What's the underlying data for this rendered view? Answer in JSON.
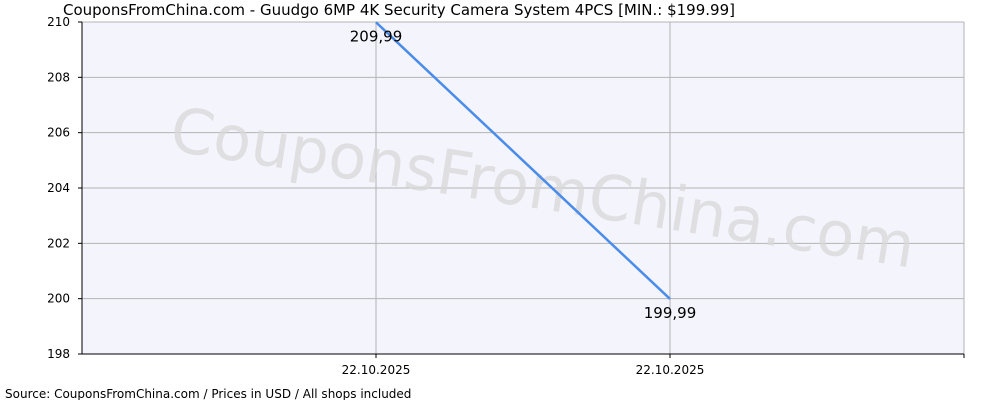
{
  "watermark": "CouponsFromChina.com",
  "source": "Source: CouponsFromChina.com / Prices in USD / All shops included",
  "colors": {
    "plot_bg": "#f4f4fc",
    "grid": "#b4b4b4",
    "line": "#4a8cea",
    "axis": "#000000"
  },
  "chart_data": {
    "type": "line",
    "title": "CouponsFromChina.com - Guudgo 6MP 4K Security Camera System 4PCS [MIN.: $199.99]",
    "xlabel": "",
    "ylabel": "",
    "ylim": [
      198,
      210
    ],
    "yticks": [
      198,
      200,
      202,
      204,
      206,
      208,
      210
    ],
    "ytick_labels": [
      "198",
      "200",
      "202",
      "204",
      "206",
      "208",
      "210"
    ],
    "x": [
      "22.10.2025",
      "22.10.2025"
    ],
    "series": [
      {
        "values": [
          209.99,
          199.99
        ],
        "labels": [
          "209,99",
          "199,99"
        ]
      }
    ],
    "grid": true,
    "legend": "none"
  }
}
